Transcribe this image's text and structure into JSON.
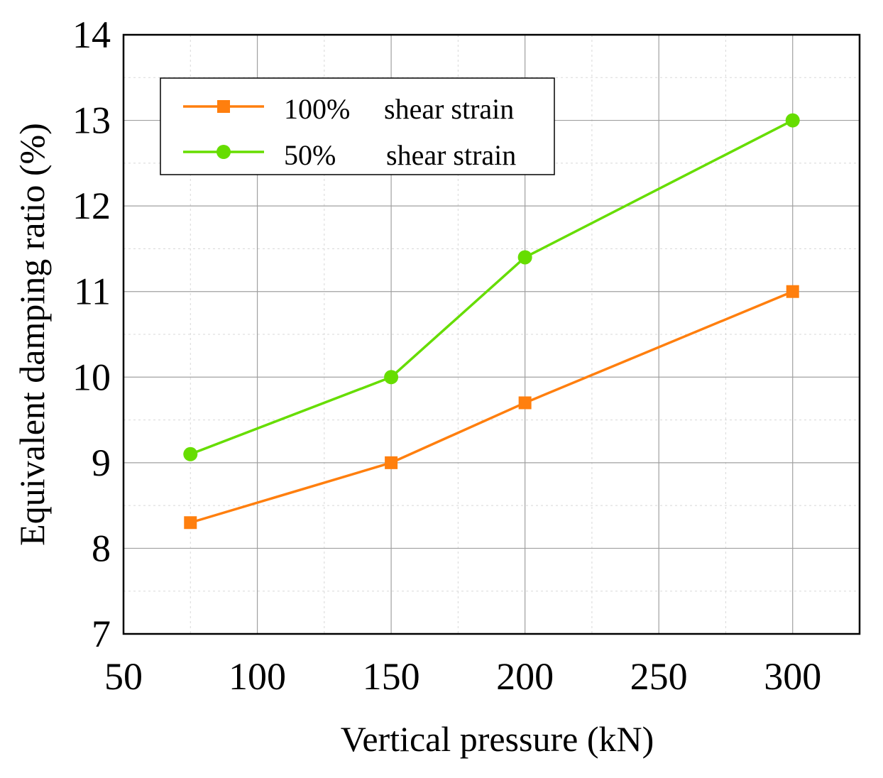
{
  "chart_data": {
    "type": "line",
    "title": "",
    "xlabel": "Vertical pressure (kN)",
    "ylabel": "Equivalent damping ratio (%)",
    "xlim": [
      50,
      325
    ],
    "ylim": [
      7,
      14
    ],
    "xticks": [
      50,
      100,
      150,
      200,
      250,
      300
    ],
    "yticks": [
      7,
      8,
      9,
      10,
      11,
      12,
      13,
      14
    ],
    "grid": true,
    "legend_position": "top-left",
    "series": [
      {
        "name_num": "100%",
        "name_text": "shear strain",
        "color": "#FF7F0E",
        "marker": "square",
        "x": [
          75,
          150,
          200,
          300
        ],
        "y": [
          8.3,
          9.0,
          9.7,
          11.0
        ]
      },
      {
        "name_num": "50%",
        "name_text": "shear strain",
        "color": "#66DD00",
        "marker": "circle",
        "x": [
          75,
          150,
          200,
          300
        ],
        "y": [
          9.1,
          10.0,
          11.4,
          13.0
        ]
      }
    ]
  }
}
